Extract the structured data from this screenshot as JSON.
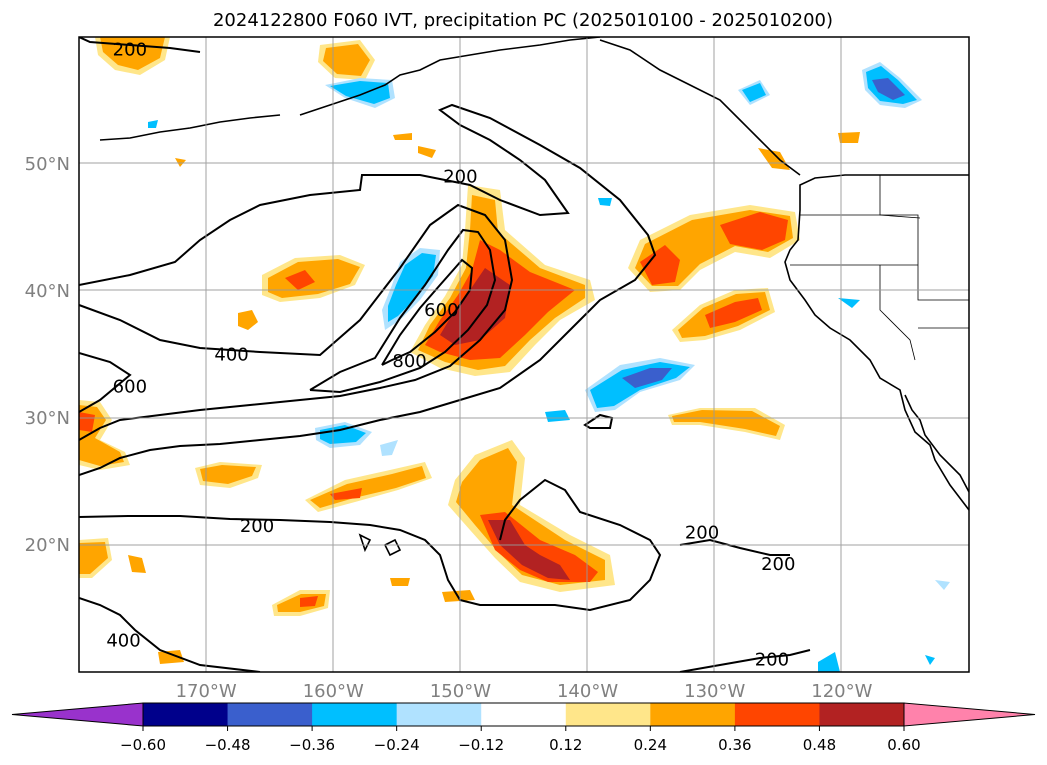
{
  "chart_data": {
    "type": "heatmap",
    "title": "2024122800 F060 IVT, precipitation PC (2025010100 - 2025010200)",
    "xlabel": "",
    "ylabel": "",
    "xlim": [
      -180,
      -110
    ],
    "ylim": [
      10,
      60
    ],
    "grid": true,
    "x_ticks": [
      {
        "lon": -170,
        "label": "170°W"
      },
      {
        "lon": -160,
        "label": "160°W"
      },
      {
        "lon": -150,
        "label": "150°W"
      },
      {
        "lon": -140,
        "label": "140°W"
      },
      {
        "lon": -130,
        "label": "130°W"
      },
      {
        "lon": -120,
        "label": "120°W"
      }
    ],
    "y_ticks": [
      {
        "lat": 20,
        "label": "20°N"
      },
      {
        "lat": 30,
        "label": "30°N"
      },
      {
        "lat": 40,
        "label": "40°N"
      },
      {
        "lat": 50,
        "label": "50°N"
      }
    ],
    "colorbar": {
      "boundaries": [
        -0.6,
        -0.48,
        -0.36,
        -0.24,
        -0.12,
        0.12,
        0.24,
        0.36,
        0.48,
        0.6
      ],
      "tick_labels": [
        "−0.60",
        "−0.48",
        "−0.36",
        "−0.24",
        "−0.12",
        "0.12",
        "0.24",
        "0.36",
        "0.48",
        "0.60"
      ],
      "colors": [
        "#9932cc",
        "#00008b",
        "#3a5fcd",
        "#00bfff",
        "#b0e2ff",
        "#ffffff",
        "#ffe68a",
        "#ffa500",
        "#ff4500",
        "#b22222",
        "#ff82ab"
      ],
      "extend": "both"
    },
    "ivt_contour_labels": [
      {
        "value": "200",
        "lon": -176,
        "lat": 59
      },
      {
        "value": "200",
        "lon": -150,
        "lat": 49
      },
      {
        "value": "400",
        "lon": -168,
        "lat": 35
      },
      {
        "value": "600",
        "lon": -176,
        "lat": 32.5
      },
      {
        "value": "600",
        "lon": -151.5,
        "lat": 38.5
      },
      {
        "value": "800",
        "lon": -154,
        "lat": 34.5
      },
      {
        "value": "200",
        "lon": -166,
        "lat": 21.5
      },
      {
        "value": "200",
        "lon": -131,
        "lat": 21
      },
      {
        "value": "200",
        "lon": -125,
        "lat": 18.5
      },
      {
        "value": "400",
        "lon": -176.5,
        "lat": 12.5
      },
      {
        "value": "200",
        "lon": -125.5,
        "lat": 11
      }
    ],
    "precip_pc_regions": [
      {
        "lon": -150,
        "lat": 39,
        "value": 0.5
      },
      {
        "lon": -144,
        "lat": 20,
        "value": 0.4
      },
      {
        "lon": -128,
        "lat": 45,
        "value": 0.36
      },
      {
        "lon": -130,
        "lat": 38,
        "value": 0.36
      },
      {
        "lon": -154,
        "lat": 40,
        "value": -0.3
      },
      {
        "lon": -138,
        "lat": 33,
        "value": -0.4
      },
      {
        "lon": -116,
        "lat": 56,
        "value": -0.4
      }
    ]
  }
}
